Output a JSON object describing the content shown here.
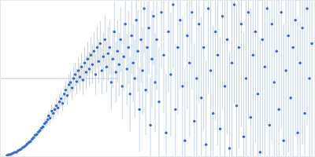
{
  "chart_data": {
    "type": "scatter",
    "color": "#3a6bc4",
    "marker": "circle",
    "tick_labels": false,
    "grid": false,
    "xlim": [
      0,
      400
    ],
    "ylim": [
      0,
      200
    ],
    "xticks": [],
    "yticks": [],
    "reference_line": {
      "y": 100,
      "x": [
        0,
        150
      ],
      "color": "#b8c9e8"
    },
    "error_color": "#b8c9e8",
    "x": [
      8,
      10,
      12,
      14,
      16,
      18,
      20,
      22,
      24,
      26,
      28,
      30,
      32,
      34,
      36,
      38,
      40,
      42,
      44,
      46,
      48,
      50,
      52,
      54,
      56,
      58,
      60,
      61,
      63,
      65,
      67,
      69,
      71,
      73,
      75,
      77,
      79,
      81,
      83,
      85,
      87,
      89,
      91,
      93,
      95,
      97,
      99,
      101,
      103,
      105,
      107,
      109,
      111,
      113,
      115,
      117,
      119,
      121,
      123,
      125,
      127,
      129,
      131,
      133,
      135,
      137,
      139,
      141,
      143,
      145,
      147,
      149,
      151,
      153,
      155,
      157,
      159,
      161,
      163,
      165,
      167,
      169,
      171,
      173,
      175,
      177,
      179,
      181,
      183,
      185,
      187,
      189,
      191,
      193,
      195,
      197,
      199,
      202,
      205,
      208,
      211,
      214,
      217,
      220,
      223,
      226,
      229,
      232,
      235,
      238,
      241,
      244,
      247,
      250,
      253,
      256,
      259,
      262,
      265,
      268,
      271,
      274,
      277,
      280,
      283,
      286,
      289,
      292,
      295,
      298,
      301,
      304,
      307,
      310,
      313,
      316,
      319,
      322,
      325,
      328,
      331,
      334,
      337,
      340,
      343,
      346,
      349,
      352,
      355,
      358,
      361,
      364,
      367,
      370,
      373,
      376,
      379,
      382,
      385,
      388,
      391,
      394,
      397
    ],
    "values": [
      1,
      2,
      2,
      3,
      4,
      5,
      5,
      7,
      8,
      9,
      11,
      12,
      14,
      16,
      18,
      19,
      22,
      24,
      27,
      28,
      31,
      33,
      36,
      38,
      42,
      44,
      47,
      52,
      49,
      58,
      55,
      60,
      65,
      62,
      70,
      74,
      68,
      80,
      85,
      78,
      92,
      95,
      88,
      100,
      105,
      96,
      110,
      102,
      115,
      98,
      120,
      108,
      125,
      112,
      130,
      118,
      135,
      105,
      140,
      122,
      145,
      110,
      128,
      150,
      115,
      132,
      140,
      95,
      125,
      160,
      108,
      135,
      118,
      150,
      90,
      128,
      170,
      112,
      140,
      80,
      155,
      120,
      100,
      175,
      135,
      60,
      150,
      110,
      190,
      85,
      140,
      165,
      40,
      125,
      180,
      95,
      150,
      70,
      185,
      130,
      30,
      160,
      105,
      195,
      60,
      140,
      175,
      90,
      20,
      155,
      120,
      185,
      45,
      100,
      170,
      75,
      140,
      15,
      190,
      110,
      55,
      160,
      130,
      35,
      180,
      90,
      150,
      10,
      120,
      195,
      65,
      140,
      170,
      25,
      100,
      185,
      50,
      130,
      160,
      80,
      5,
      150,
      115,
      190,
      40,
      170,
      95,
      135,
      60,
      185,
      20,
      110,
      155,
      75,
      140,
      175,
      30,
      120,
      165,
      55,
      190,
      100,
      145
    ],
    "errors": [
      1,
      1,
      1,
      1,
      1,
      1,
      2,
      2,
      2,
      2,
      2,
      2,
      3,
      3,
      3,
      3,
      3,
      4,
      4,
      4,
      4,
      5,
      5,
      5,
      6,
      6,
      6,
      7,
      7,
      8,
      8,
      8,
      9,
      9,
      10,
      10,
      11,
      11,
      12,
      12,
      13,
      14,
      14,
      15,
      15,
      16,
      17,
      18,
      18,
      19,
      20,
      21,
      22,
      22,
      23,
      24,
      25,
      26,
      27,
      28,
      29,
      30,
      31,
      32,
      33,
      34,
      35,
      36,
      37,
      38,
      39,
      40,
      41,
      42,
      43,
      44,
      45,
      46,
      47,
      48,
      49,
      50,
      51,
      52,
      53,
      54,
      55,
      56,
      57,
      58,
      59,
      60,
      61,
      62,
      63,
      64,
      65,
      70,
      72,
      74,
      76,
      78,
      80,
      82,
      84,
      86,
      88,
      90,
      92,
      94,
      96,
      98,
      100,
      100,
      102,
      104,
      106,
      108,
      110,
      110,
      112,
      114,
      116,
      118,
      120,
      120,
      122,
      124,
      126,
      128,
      130,
      130,
      132,
      134,
      136,
      138,
      140,
      140,
      142,
      144,
      146,
      148,
      150,
      150,
      150,
      150,
      150,
      150,
      150,
      150,
      150,
      150,
      150,
      150,
      150,
      150,
      150,
      150,
      150,
      150,
      150,
      150,
      150
    ]
  }
}
